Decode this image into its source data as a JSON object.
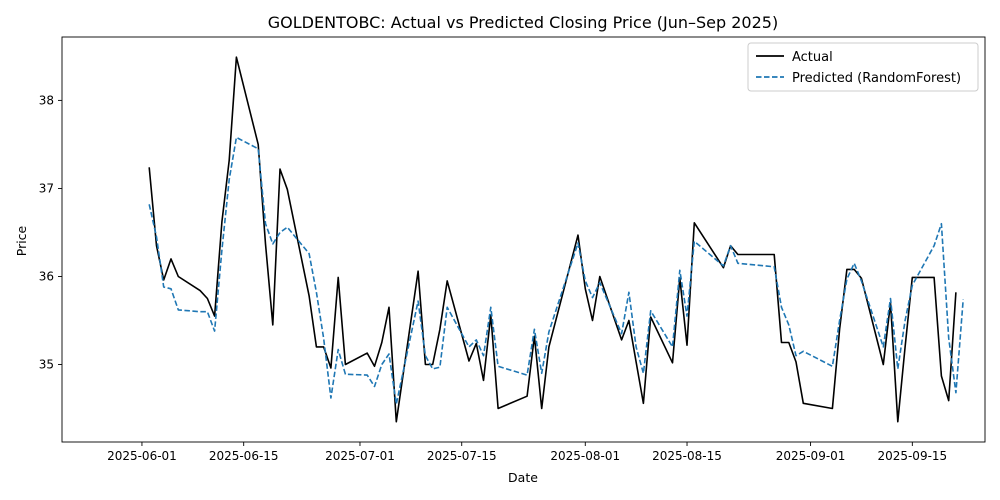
{
  "chart_data": {
    "type": "line",
    "title": "GOLDENTOBC: Actual vs Predicted Closing Price (Jun–Sep 2025)",
    "xlabel": "Date",
    "ylabel": "Price",
    "x_ticks": [
      "2025-06-01",
      "2025-06-15",
      "2025-07-01",
      "2025-07-15",
      "2025-08-01",
      "2025-08-15",
      "2025-09-01",
      "2025-09-15"
    ],
    "y_ticks": [
      35,
      36,
      37,
      38
    ],
    "xlim": [
      "2025-05-21",
      "2025-09-25"
    ],
    "ylim": [
      34.12,
      38.72
    ],
    "grid": false,
    "legend": "upper right",
    "series": [
      {
        "name": "Actual",
        "color": "#000000",
        "style": "solid",
        "points": [
          [
            "2025-06-02",
            37.24
          ],
          [
            "2025-06-03",
            36.35
          ],
          [
            "2025-06-04",
            35.96
          ],
          [
            "2025-06-05",
            36.2
          ],
          [
            "2025-06-06",
            36.0
          ],
          [
            "2025-06-09",
            35.84
          ],
          [
            "2025-06-10",
            35.75
          ],
          [
            "2025-06-11",
            35.55
          ],
          [
            "2025-06-12",
            36.62
          ],
          [
            "2025-06-13",
            37.32
          ],
          [
            "2025-06-14",
            38.49
          ],
          [
            "2025-06-17",
            37.5
          ],
          [
            "2025-06-18",
            36.37
          ],
          [
            "2025-06-19",
            35.45
          ],
          [
            "2025-06-20",
            37.22
          ],
          [
            "2025-06-21",
            36.99
          ],
          [
            "2025-06-24",
            35.78
          ],
          [
            "2025-06-25",
            35.2
          ],
          [
            "2025-06-26",
            35.2
          ],
          [
            "2025-06-27",
            34.96
          ],
          [
            "2025-06-28",
            35.99
          ],
          [
            "2025-06-29",
            35.0
          ],
          [
            "2025-07-02",
            35.13
          ],
          [
            "2025-07-03",
            34.98
          ],
          [
            "2025-07-04",
            35.25
          ],
          [
            "2025-07-05",
            35.65
          ],
          [
            "2025-07-06",
            34.35
          ],
          [
            "2025-07-09",
            36.06
          ],
          [
            "2025-07-10",
            35.0
          ],
          [
            "2025-07-11",
            35.0
          ],
          [
            "2025-07-12",
            35.4
          ],
          [
            "2025-07-13",
            35.95
          ],
          [
            "2025-07-16",
            35.04
          ],
          [
            "2025-07-17",
            35.24
          ],
          [
            "2025-07-18",
            34.82
          ],
          [
            "2025-07-19",
            35.56
          ],
          [
            "2025-07-20",
            34.5
          ],
          [
            "2025-07-24",
            34.64
          ],
          [
            "2025-07-25",
            35.32
          ],
          [
            "2025-07-26",
            34.5
          ],
          [
            "2025-07-27",
            35.2
          ],
          [
            "2025-07-31",
            36.47
          ],
          [
            "2025-08-01",
            35.86
          ],
          [
            "2025-08-02",
            35.5
          ],
          [
            "2025-08-03",
            36.0
          ],
          [
            "2025-08-06",
            35.28
          ],
          [
            "2025-08-07",
            35.5
          ],
          [
            "2025-08-08",
            35.03
          ],
          [
            "2025-08-09",
            34.56
          ],
          [
            "2025-08-10",
            35.54
          ],
          [
            "2025-08-13",
            35.02
          ],
          [
            "2025-08-14",
            35.98
          ],
          [
            "2025-08-15",
            35.22
          ],
          [
            "2025-08-16",
            36.61
          ],
          [
            "2025-08-20",
            36.1
          ],
          [
            "2025-08-21",
            36.35
          ],
          [
            "2025-08-22",
            36.25
          ],
          [
            "2025-08-27",
            36.25
          ],
          [
            "2025-08-28",
            35.25
          ],
          [
            "2025-08-29",
            35.25
          ],
          [
            "2025-08-30",
            35.03
          ],
          [
            "2025-08-31",
            34.56
          ],
          [
            "2025-09-04",
            34.5
          ],
          [
            "2025-09-05",
            35.4
          ],
          [
            "2025-09-06",
            36.08
          ],
          [
            "2025-09-07",
            36.08
          ],
          [
            "2025-09-08",
            35.98
          ],
          [
            "2025-09-11",
            35.0
          ],
          [
            "2025-09-12",
            35.7
          ],
          [
            "2025-09-13",
            34.35
          ],
          [
            "2025-09-14",
            35.2
          ],
          [
            "2025-09-15",
            35.99
          ],
          [
            "2025-09-18",
            35.99
          ],
          [
            "2025-09-19",
            34.87
          ],
          [
            "2025-09-20",
            34.59
          ],
          [
            "2025-09-21",
            35.82
          ]
        ]
      },
      {
        "name": "Predicted (RandomForest)",
        "color": "#1f77b4",
        "style": "dashed",
        "points": [
          [
            "2025-06-02",
            36.82
          ],
          [
            "2025-06-03",
            36.45
          ],
          [
            "2025-06-04",
            35.88
          ],
          [
            "2025-06-05",
            35.86
          ],
          [
            "2025-06-06",
            35.62
          ],
          [
            "2025-06-09",
            35.6
          ],
          [
            "2025-06-10",
            35.6
          ],
          [
            "2025-06-11",
            35.38
          ],
          [
            "2025-06-12",
            36.3
          ],
          [
            "2025-06-13",
            37.1
          ],
          [
            "2025-06-14",
            37.58
          ],
          [
            "2025-06-17",
            37.45
          ],
          [
            "2025-06-18",
            36.6
          ],
          [
            "2025-06-19",
            36.37
          ],
          [
            "2025-06-20",
            36.5
          ],
          [
            "2025-06-21",
            36.56
          ],
          [
            "2025-06-24",
            36.26
          ],
          [
            "2025-06-25",
            35.82
          ],
          [
            "2025-06-26",
            35.3
          ],
          [
            "2025-06-27",
            34.62
          ],
          [
            "2025-06-28",
            35.17
          ],
          [
            "2025-06-29",
            34.89
          ],
          [
            "2025-07-02",
            34.88
          ],
          [
            "2025-07-03",
            34.75
          ],
          [
            "2025-07-04",
            35.0
          ],
          [
            "2025-07-05",
            35.12
          ],
          [
            "2025-07-06",
            34.55
          ],
          [
            "2025-07-09",
            35.72
          ],
          [
            "2025-07-10",
            35.1
          ],
          [
            "2025-07-11",
            34.95
          ],
          [
            "2025-07-12",
            34.97
          ],
          [
            "2025-07-13",
            35.65
          ],
          [
            "2025-07-16",
            35.2
          ],
          [
            "2025-07-17",
            35.28
          ],
          [
            "2025-07-18",
            35.1
          ],
          [
            "2025-07-19",
            35.65
          ],
          [
            "2025-07-20",
            34.98
          ],
          [
            "2025-07-24",
            34.88
          ],
          [
            "2025-07-25",
            35.4
          ],
          [
            "2025-07-26",
            34.9
          ],
          [
            "2025-07-27",
            35.37
          ],
          [
            "2025-07-31",
            36.38
          ],
          [
            "2025-08-01",
            35.95
          ],
          [
            "2025-08-02",
            35.76
          ],
          [
            "2025-08-03",
            35.93
          ],
          [
            "2025-08-06",
            35.35
          ],
          [
            "2025-08-07",
            35.82
          ],
          [
            "2025-08-08",
            35.2
          ],
          [
            "2025-08-09",
            34.9
          ],
          [
            "2025-08-10",
            35.61
          ],
          [
            "2025-08-13",
            35.2
          ],
          [
            "2025-08-14",
            36.07
          ],
          [
            "2025-08-15",
            35.55
          ],
          [
            "2025-08-16",
            36.4
          ],
          [
            "2025-08-20",
            36.12
          ],
          [
            "2025-08-21",
            36.35
          ],
          [
            "2025-08-22",
            36.15
          ],
          [
            "2025-08-27",
            36.11
          ],
          [
            "2025-08-28",
            35.65
          ],
          [
            "2025-08-29",
            35.45
          ],
          [
            "2025-08-30",
            35.1
          ],
          [
            "2025-08-31",
            35.15
          ],
          [
            "2025-09-04",
            34.98
          ],
          [
            "2025-09-05",
            35.5
          ],
          [
            "2025-09-06",
            35.97
          ],
          [
            "2025-09-07",
            36.15
          ],
          [
            "2025-09-08",
            35.95
          ],
          [
            "2025-09-11",
            35.2
          ],
          [
            "2025-09-12",
            35.75
          ],
          [
            "2025-09-13",
            34.95
          ],
          [
            "2025-09-14",
            35.5
          ],
          [
            "2025-09-15",
            35.9
          ],
          [
            "2025-09-18",
            36.35
          ],
          [
            "2025-09-19",
            36.6
          ],
          [
            "2025-09-20",
            35.3
          ],
          [
            "2025-09-21",
            34.68
          ],
          [
            "2025-09-22",
            35.74
          ]
        ]
      }
    ]
  }
}
